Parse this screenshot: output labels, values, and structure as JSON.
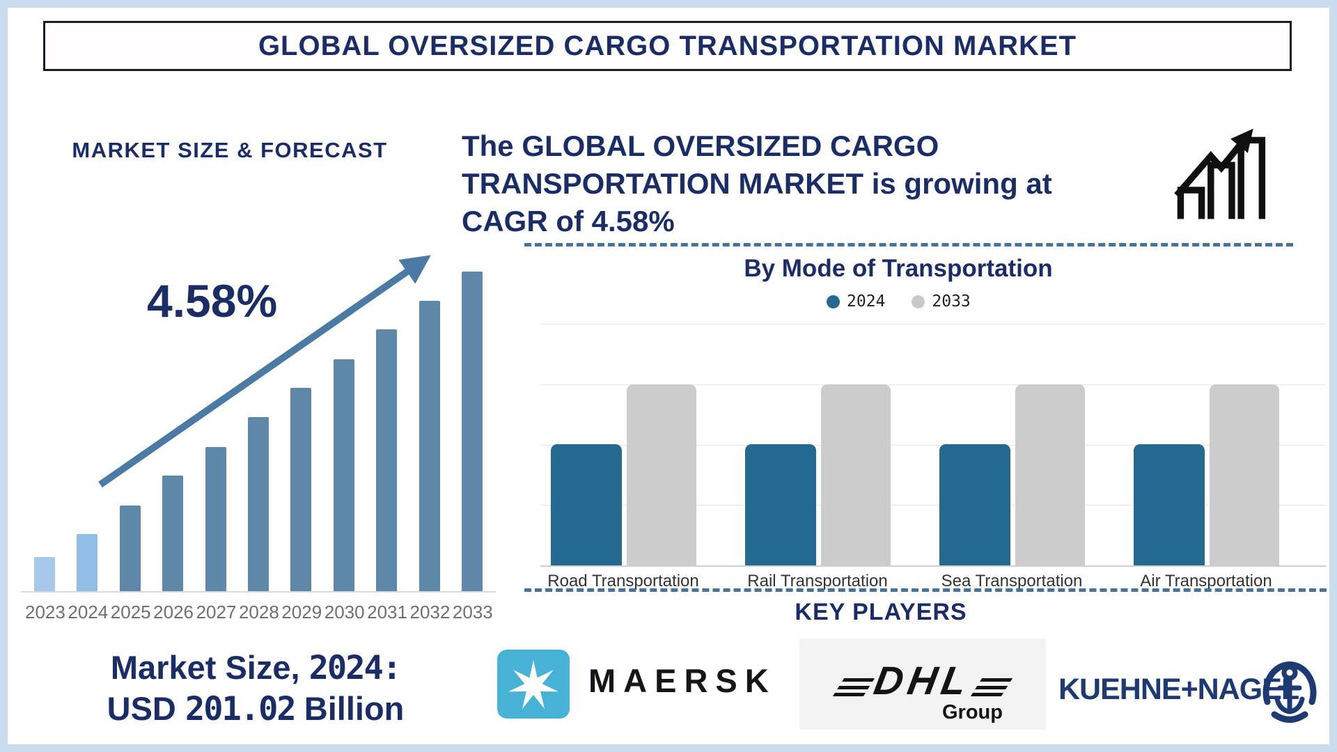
{
  "page": {
    "title": "GLOBAL OVERSIZED CARGO TRANSPORTATION MARKET"
  },
  "left_panel": {
    "heading": "MARKET SIZE & FORECAST",
    "cagr_label": "4.58%",
    "market_size": {
      "prefix": "Market Size,",
      "year": "2024:",
      "currency": "USD",
      "value": "201.02",
      "unit": "Billion"
    }
  },
  "intro": {
    "full_text": "The GLOBAL OVERSIZED CARGO TRANSPORTATION MARKET is growing at CAGR of 4.58%",
    "lines": [
      "The GLOBAL OVERSIZED CARGO",
      "TRANSPORTATION MARKET is growing at",
      "CAGR of 4.58%"
    ]
  },
  "mode_section": {
    "title": "By Mode of Transportation",
    "legend": [
      {
        "label": "2024",
        "color": "#236990"
      },
      {
        "label": "2033",
        "color": "#c9c9c9"
      }
    ]
  },
  "key_players": {
    "heading": "KEY PLAYERS",
    "companies": [
      {
        "name": "Maersk",
        "wordmark": "MAERSK"
      },
      {
        "name": "DHL Group",
        "wordmark": "DHL",
        "subtext": "Group"
      },
      {
        "name": "Kuehne+Nagel",
        "wordmark": "KUEHNE+NAGEL"
      }
    ]
  },
  "chart_data": [
    {
      "id": "market-size-forecast",
      "type": "bar",
      "title": "MARKET SIZE & FORECAST",
      "categories": [
        "2023",
        "2024",
        "2025",
        "2026",
        "2027",
        "2028",
        "2029",
        "2030",
        "2031",
        "2032",
        "2033"
      ],
      "values": [
        49,
        82,
        123,
        166,
        207,
        250,
        292,
        333,
        376,
        417,
        459
      ],
      "values_note": "stylized relative bar heights in px; no y-axis shown on chart",
      "bar_colors": [
        "#a4c9ec",
        "#8fbde4",
        "#5e88aa",
        "#5e88aa",
        "#5e88aa",
        "#5e88aa",
        "#5e88aa",
        "#5e88aa",
        "#5e88aa",
        "#5e88aa",
        "#5e88aa"
      ],
      "annotation": "4.58%",
      "known_point": "Market Size, 2024: USD 201.02 Billion",
      "xlabel": "",
      "ylabel": "",
      "grid": false,
      "legend_position": "none"
    },
    {
      "id": "by-mode-of-transportation",
      "type": "bar",
      "title": "By Mode of Transportation",
      "categories": [
        "Road Transportation",
        "Rail Transportation",
        "Sea Transportation",
        "Air Transportation"
      ],
      "series": [
        {
          "name": "2024",
          "color": "#236990",
          "values": [
            2,
            2,
            2,
            2
          ]
        },
        {
          "name": "2033",
          "color": "#cccccc",
          "values": [
            3,
            3,
            3,
            3
          ]
        }
      ],
      "ylim": [
        0,
        4
      ],
      "grid": true,
      "legend_position": "top",
      "values_note": "no y-axis labels; all 2024 bars equal height, all 2033 bars equal height (stylized units)"
    }
  ],
  "colors": {
    "navy_text": "#1b2d66",
    "frame_blue": "#c9ddef",
    "dashed_line": "#44739c",
    "trend_arrow": "#4b7ba4",
    "year_labels": "#6f6f6f",
    "maersk_blue": "#45b2d6",
    "kuehne_nagel_navy": "#1e3a72",
    "dhl_box_gray": "#f3f3f3",
    "growth_icon_black": "#101010"
  }
}
